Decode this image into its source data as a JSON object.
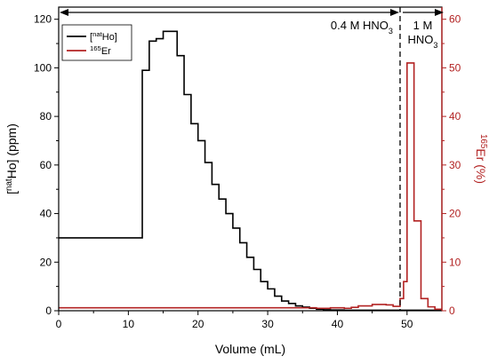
{
  "chart_data": {
    "type": "line",
    "step": true,
    "xlabel": "Volume (mL)",
    "ylabel_left": {
      "prefix": "[",
      "sup": "nat",
      "main": "Ho] (ppm)"
    },
    "ylabel_right": {
      "sup": "165",
      "main": "Er (%)"
    },
    "xlim": [
      0,
      55
    ],
    "ylim_left": [
      0,
      125
    ],
    "ylim_right": [
      0,
      62.5
    ],
    "x_ticks": [
      0,
      10,
      20,
      30,
      40,
      50
    ],
    "y_left_ticks": [
      0,
      20,
      40,
      60,
      80,
      100,
      120
    ],
    "y_right_ticks": [
      0,
      10,
      20,
      30,
      40,
      50,
      60
    ],
    "legend": {
      "placement": "top-left",
      "entries": [
        {
          "prefix": "[",
          "sup": "nat",
          "main": "Ho]",
          "color": "#000000"
        },
        {
          "prefix": "",
          "sup": "165",
          "main": "Er",
          "color": "#b22222"
        }
      ]
    },
    "annotations": {
      "divider_x": 49,
      "region1": {
        "text": "0.4 M HNO",
        "sub": "3"
      },
      "region2_line1": "1 M",
      "region2_line2": {
        "text": "HNO",
        "sub": "3"
      }
    },
    "series": [
      {
        "axis": "left",
        "color": "#000000",
        "x": [
          0,
          12,
          13,
          14,
          15,
          16,
          17,
          18,
          19,
          20,
          21,
          22,
          23,
          24,
          25,
          26,
          27,
          28,
          29,
          30,
          31,
          32,
          33,
          34,
          35,
          36,
          37,
          38,
          39,
          40,
          41,
          42,
          43,
          44,
          45,
          46,
          47,
          48,
          49,
          50,
          51,
          52,
          53,
          54,
          55
        ],
        "y": [
          30,
          99,
          111,
          112,
          115,
          115,
          105,
          89,
          77,
          70,
          61,
          52,
          46,
          40,
          34,
          28,
          22,
          17,
          12,
          9,
          6,
          4,
          3,
          2,
          1.5,
          1,
          0.6,
          0.4,
          0.3,
          0.3,
          0.2,
          0.2,
          0.2,
          0.2,
          0.2,
          0.2,
          0.2,
          0.2,
          0.2,
          0.2,
          0.2,
          0.2,
          0.2,
          0.2,
          0.2
        ]
      },
      {
        "axis": "right",
        "color": "#b22222",
        "x": [
          0,
          12,
          36,
          37,
          38,
          39,
          40,
          41,
          42,
          43,
          44,
          45,
          46,
          47,
          48,
          49,
          49.5,
          50,
          51,
          52,
          53,
          54,
          55
        ],
        "y": [
          0.6,
          0.6,
          0.6,
          0.5,
          0.5,
          0.6,
          0.6,
          0.5,
          0.7,
          1.0,
          1.0,
          1.3,
          1.3,
          1.2,
          0.9,
          2.5,
          6,
          51,
          18.5,
          2.5,
          0.8,
          0.3,
          0.3
        ]
      }
    ]
  }
}
